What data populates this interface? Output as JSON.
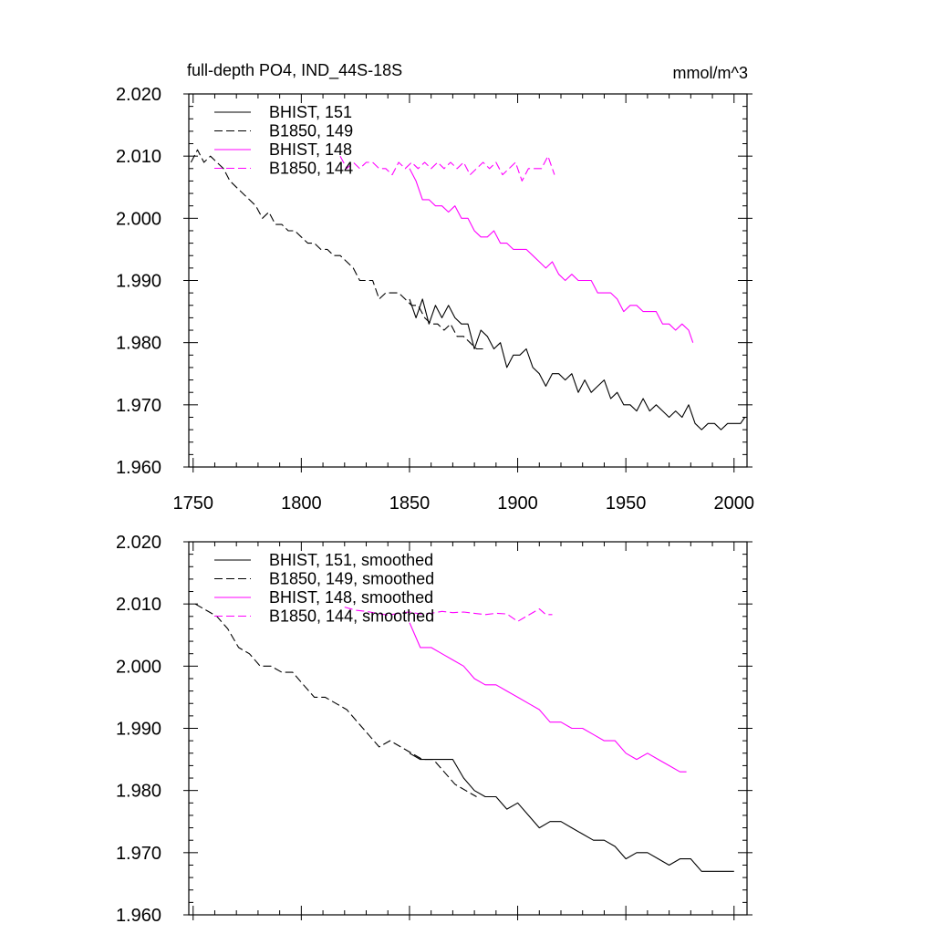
{
  "title_left": "full-depth PO4, IND_44S-18S",
  "title_right": "mmol/m^3",
  "colors": {
    "black": "#000000",
    "magenta": "#ff00ff"
  },
  "chart_data": [
    {
      "type": "line",
      "xlim": [
        1748,
        2006
      ],
      "ylim": [
        1.96,
        2.02
      ],
      "xticks": [
        1750,
        1800,
        1850,
        1900,
        1950,
        2000
      ],
      "xtick_labels": [
        "1750",
        "1800",
        "1850",
        "1900",
        "1950",
        "2000"
      ],
      "yticks": [
        1.96,
        1.97,
        1.98,
        1.99,
        2.0,
        2.01,
        2.02
      ],
      "ytick_labels": [
        "1.960",
        "1.970",
        "1.980",
        "1.990",
        "2.000",
        "2.010",
        "2.020"
      ],
      "legend_position": "top-left",
      "series": [
        {
          "name": "BHIST, 151",
          "color": "#000000",
          "dash": "solid",
          "x": [
            1850,
            1853,
            1856,
            1859,
            1862,
            1865,
            1868,
            1871,
            1874,
            1877,
            1880,
            1883,
            1886,
            1889,
            1892,
            1895,
            1898,
            1901,
            1904,
            1907,
            1910,
            1913,
            1916,
            1919,
            1922,
            1925,
            1928,
            1931,
            1934,
            1937,
            1940,
            1943,
            1946,
            1949,
            1952,
            1955,
            1958,
            1961,
            1964,
            1967,
            1970,
            1973,
            1976,
            1979,
            1982,
            1985,
            1988,
            1991,
            1994,
            1997,
            2000,
            2003,
            2005
          ],
          "y": [
            1.987,
            1.984,
            1.987,
            1.983,
            1.986,
            1.984,
            1.986,
            1.984,
            1.983,
            1.983,
            1.979,
            1.982,
            1.981,
            1.979,
            1.98,
            1.976,
            1.978,
            1.978,
            1.979,
            1.976,
            1.975,
            1.973,
            1.975,
            1.975,
            1.974,
            1.975,
            1.972,
            1.974,
            1.972,
            1.973,
            1.974,
            1.971,
            1.972,
            1.97,
            1.97,
            1.969,
            1.971,
            1.969,
            1.97,
            1.969,
            1.968,
            1.969,
            1.968,
            1.97,
            1.967,
            1.966,
            1.967,
            1.967,
            1.966,
            1.967,
            1.967,
            1.967,
            1.968
          ]
        },
        {
          "name": "B1850, 149",
          "color": "#000000",
          "dash": "dashed",
          "x": [
            1749,
            1752,
            1755,
            1758,
            1761,
            1764,
            1767,
            1770,
            1773,
            1776,
            1779,
            1782,
            1785,
            1788,
            1791,
            1794,
            1797,
            1800,
            1803,
            1806,
            1809,
            1812,
            1815,
            1818,
            1821,
            1824,
            1827,
            1830,
            1833,
            1836,
            1839,
            1842,
            1845,
            1848,
            1851,
            1854,
            1857,
            1860,
            1863,
            1866,
            1869,
            1872,
            1875,
            1878,
            1881,
            1884
          ],
          "y": [
            2.009,
            2.011,
            2.009,
            2.01,
            2.009,
            2.008,
            2.006,
            2.005,
            2.004,
            2.003,
            2.002,
            2.0,
            2.001,
            1.999,
            1.999,
            1.998,
            1.998,
            1.997,
            1.996,
            1.996,
            1.995,
            1.995,
            1.994,
            1.994,
            1.993,
            1.992,
            1.99,
            1.99,
            1.99,
            1.987,
            1.988,
            1.988,
            1.988,
            1.987,
            1.986,
            1.986,
            1.984,
            1.983,
            1.983,
            1.982,
            1.983,
            1.981,
            1.981,
            1.98,
            1.979,
            1.979
          ]
        },
        {
          "name": "BHIST, 148",
          "color": "#ff00ff",
          "dash": "solid",
          "x": [
            1850,
            1853,
            1856,
            1859,
            1862,
            1865,
            1868,
            1871,
            1874,
            1877,
            1880,
            1883,
            1886,
            1889,
            1892,
            1895,
            1898,
            1901,
            1904,
            1907,
            1910,
            1913,
            1916,
            1919,
            1922,
            1925,
            1928,
            1931,
            1934,
            1937,
            1940,
            1943,
            1946,
            1949,
            1952,
            1955,
            1958,
            1961,
            1964,
            1967,
            1970,
            1973,
            1976,
            1979,
            1981
          ],
          "y": [
            2.008,
            2.006,
            2.003,
            2.003,
            2.002,
            2.002,
            2.001,
            2.002,
            2.0,
            2.0,
            1.998,
            1.997,
            1.997,
            1.998,
            1.996,
            1.996,
            1.995,
            1.995,
            1.995,
            1.994,
            1.993,
            1.992,
            1.993,
            1.991,
            1.99,
            1.991,
            1.99,
            1.99,
            1.99,
            1.988,
            1.988,
            1.988,
            1.987,
            1.985,
            1.986,
            1.986,
            1.985,
            1.985,
            1.985,
            1.983,
            1.983,
            1.982,
            1.983,
            1.982,
            1.98
          ]
        },
        {
          "name": "B1850, 144",
          "color": "#ff00ff",
          "dash": "dashed",
          "x": [
            1818,
            1821,
            1824,
            1827,
            1830,
            1833,
            1836,
            1839,
            1842,
            1845,
            1848,
            1851,
            1854,
            1857,
            1860,
            1863,
            1866,
            1869,
            1872,
            1875,
            1878,
            1881,
            1884,
            1887,
            1890,
            1893,
            1896,
            1899,
            1902,
            1905,
            1908,
            1911,
            1914,
            1917
          ],
          "y": [
            2.01,
            2.008,
            2.009,
            2.008,
            2.009,
            2.009,
            2.008,
            2.008,
            2.007,
            2.009,
            2.008,
            2.009,
            2.008,
            2.009,
            2.008,
            2.009,
            2.008,
            2.009,
            2.008,
            2.009,
            2.007,
            2.008,
            2.009,
            2.008,
            2.009,
            2.007,
            2.008,
            2.009,
            2.006,
            2.008,
            2.008,
            2.008,
            2.01,
            2.007
          ]
        }
      ]
    },
    {
      "type": "line",
      "xlim": [
        1748,
        2006
      ],
      "ylim": [
        1.96,
        2.02
      ],
      "yticks": [
        1.96,
        1.97,
        1.98,
        1.99,
        2.0,
        2.01,
        2.02
      ],
      "ytick_labels": [
        "1.960",
        "1.970",
        "1.980",
        "1.990",
        "2.000",
        "2.010",
        "2.020"
      ],
      "legend_position": "top-left",
      "series": [
        {
          "name": "BHIST, 151, smoothed",
          "color": "#000000",
          "dash": "solid",
          "x": [
            1850,
            1855,
            1860,
            1865,
            1870,
            1875,
            1880,
            1885,
            1890,
            1895,
            1900,
            1905,
            1910,
            1915,
            1920,
            1925,
            1930,
            1935,
            1940,
            1945,
            1950,
            1955,
            1960,
            1965,
            1970,
            1975,
            1980,
            1985,
            1990,
            1995,
            2000
          ],
          "y": [
            1.986,
            1.985,
            1.985,
            1.985,
            1.985,
            1.982,
            1.98,
            1.979,
            1.979,
            1.977,
            1.978,
            1.976,
            1.974,
            1.975,
            1.975,
            1.974,
            1.973,
            1.972,
            1.972,
            1.971,
            1.969,
            1.97,
            1.97,
            1.969,
            1.968,
            1.969,
            1.969,
            1.967,
            1.967,
            1.967,
            1.967
          ]
        },
        {
          "name": "B1850, 149, smoothed",
          "color": "#000000",
          "dash": "dashed",
          "x": [
            1751,
            1756,
            1761,
            1766,
            1771,
            1776,
            1781,
            1786,
            1791,
            1796,
            1801,
            1806,
            1811,
            1816,
            1821,
            1826,
            1831,
            1836,
            1841,
            1846,
            1851,
            1856,
            1861,
            1866,
            1871,
            1876,
            1881
          ],
          "y": [
            2.01,
            2.009,
            2.008,
            2.006,
            2.003,
            2.002,
            2.0,
            2.0,
            1.999,
            1.999,
            1.997,
            1.995,
            1.995,
            1.994,
            1.993,
            1.991,
            1.989,
            1.987,
            1.988,
            1.987,
            1.986,
            1.985,
            1.985,
            1.983,
            1.981,
            1.98,
            1.979
          ]
        },
        {
          "name": "BHIST, 148, smoothed",
          "color": "#ff00ff",
          "dash": "solid",
          "x": [
            1850,
            1855,
            1860,
            1865,
            1870,
            1875,
            1880,
            1885,
            1890,
            1895,
            1900,
            1905,
            1910,
            1915,
            1920,
            1925,
            1930,
            1935,
            1940,
            1945,
            1950,
            1955,
            1960,
            1965,
            1970,
            1975,
            1978
          ],
          "y": [
            2.007,
            2.003,
            2.003,
            2.002,
            2.001,
            2.0,
            1.998,
            1.997,
            1.997,
            1.996,
            1.995,
            1.994,
            1.993,
            1.991,
            1.991,
            1.99,
            1.99,
            1.989,
            1.988,
            1.988,
            1.986,
            1.985,
            1.986,
            1.985,
            1.984,
            1.983,
            1.983
          ]
        },
        {
          "name": "B1850, 144, smoothed",
          "color": "#ff00ff",
          "dash": "dashed",
          "x": [
            1820,
            1825,
            1830,
            1835,
            1840,
            1845,
            1850,
            1855,
            1860,
            1865,
            1870,
            1875,
            1880,
            1885,
            1890,
            1895,
            1900,
            1905,
            1910,
            1913,
            1916
          ],
          "y": [
            2.0095,
            2.009,
            2.0088,
            2.0085,
            2.0082,
            2.0085,
            2.0087,
            2.0084,
            2.0085,
            2.0088,
            2.0086,
            2.0087,
            2.0085,
            2.0083,
            2.0085,
            2.0084,
            2.0072,
            2.0082,
            2.0092,
            2.0083,
            2.0083
          ]
        }
      ]
    }
  ]
}
